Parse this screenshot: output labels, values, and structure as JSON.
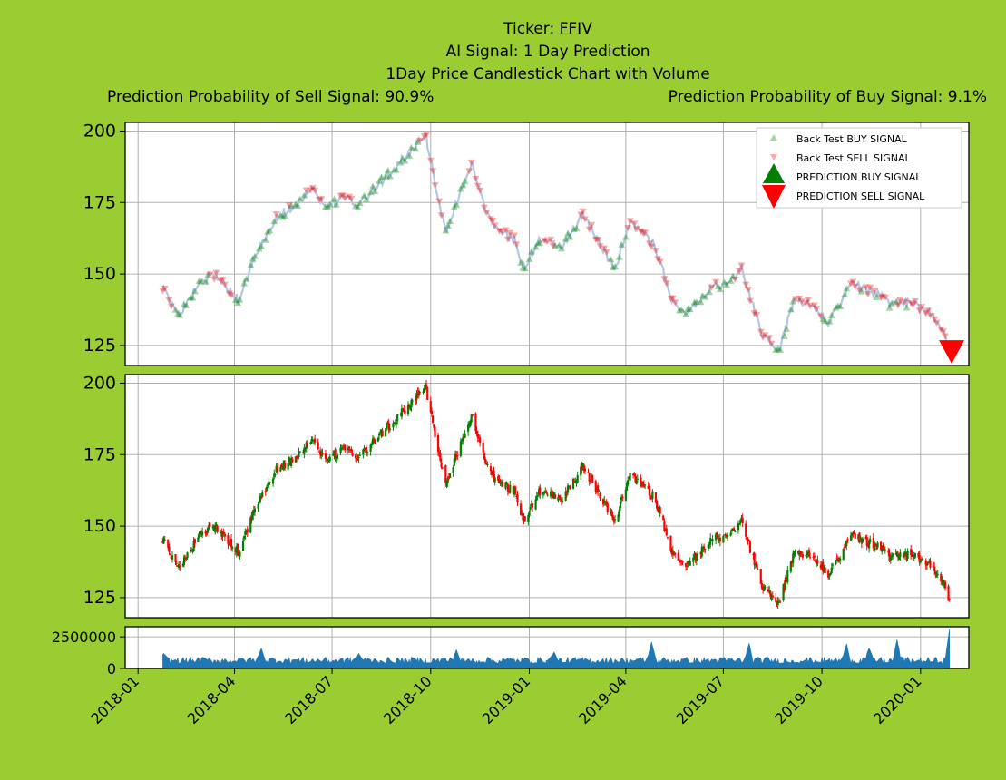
{
  "header": {
    "title_lines": [
      "Ticker: FFIV",
      "AI Signal: 1 Day Prediction",
      "1Day Price Candlestick Chart with Volume"
    ],
    "sell_probability": "Prediction Probability of Sell Signal: 90.9%",
    "buy_probability": "Prediction Probability of Buy Signal: 9.1%"
  },
  "colors": {
    "background": "#9acd32",
    "buy": "#008000",
    "sell": "#ff0000",
    "close_line": "#b0c8e4",
    "volume": "#1f77b4"
  },
  "chart_data": [
    {
      "type": "scatter",
      "panel": "signals",
      "x_range": [
        "2017-12-20",
        "2020-02-15"
      ],
      "ylim": [
        118,
        203
      ],
      "yticks": [
        "125",
        "150",
        "175",
        "200"
      ],
      "grid": true,
      "legend": {
        "placement": "top-right",
        "entries": [
          "Back Test BUY SIGNAL",
          "Back Test SELL SIGNAL",
          "PREDICTION BUY SIGNAL",
          "PREDICTION SELL SIGNAL"
        ]
      },
      "close_anchors": [
        [
          "2018-01-24",
          145
        ],
        [
          "2018-02-08",
          136
        ],
        [
          "2018-02-26",
          146
        ],
        [
          "2018-03-12",
          150
        ],
        [
          "2018-03-26",
          145
        ],
        [
          "2018-04-05",
          141
        ],
        [
          "2018-04-20",
          156
        ],
        [
          "2018-05-10",
          170
        ],
        [
          "2018-05-28",
          174
        ],
        [
          "2018-06-13",
          181
        ],
        [
          "2018-06-25",
          172
        ],
        [
          "2018-07-10",
          177
        ],
        [
          "2018-07-25",
          174
        ],
        [
          "2018-08-15",
          182
        ],
        [
          "2018-09-05",
          190
        ],
        [
          "2018-09-26",
          199
        ],
        [
          "2018-10-06",
          180
        ],
        [
          "2018-10-15",
          165
        ],
        [
          "2018-11-08",
          189
        ],
        [
          "2018-11-25",
          168
        ],
        [
          "2018-12-18",
          162
        ],
        [
          "2018-12-27",
          152
        ],
        [
          "2019-01-10",
          162
        ],
        [
          "2019-02-01",
          160
        ],
        [
          "2019-02-20",
          171
        ],
        [
          "2019-03-12",
          158
        ],
        [
          "2019-03-22",
          152
        ],
        [
          "2019-04-05",
          168
        ],
        [
          "2019-04-28",
          160
        ],
        [
          "2019-05-15",
          140
        ],
        [
          "2019-05-28",
          136
        ],
        [
          "2019-06-18",
          145
        ],
        [
          "2019-07-05",
          147
        ],
        [
          "2019-07-18",
          152
        ],
        [
          "2019-08-05",
          130
        ],
        [
          "2019-08-22",
          123
        ],
        [
          "2019-09-05",
          141
        ],
        [
          "2019-09-22",
          139
        ],
        [
          "2019-10-08",
          133
        ],
        [
          "2019-10-28",
          147
        ],
        [
          "2019-11-22",
          143
        ],
        [
          "2019-12-05",
          139
        ],
        [
          "2019-12-25",
          140
        ],
        [
          "2020-01-10",
          137
        ],
        [
          "2020-01-20",
          132
        ],
        [
          "2020-01-28",
          123
        ]
      ],
      "prediction_signal": {
        "signal": "sell",
        "date": "2020-01-30",
        "price": 124
      }
    },
    {
      "type": "candlestick",
      "panel": "price",
      "ylim": [
        118,
        203
      ],
      "yticks": [
        "125",
        "150",
        "175",
        "200"
      ],
      "grid": true
    },
    {
      "type": "area",
      "panel": "volume",
      "ylim": [
        0,
        3300000
      ],
      "yticks": [
        "0",
        "2500000"
      ],
      "baseline_volume": 650000,
      "spikes": [
        [
          "2018-01-25",
          1200000
        ],
        [
          "2018-04-26",
          1600000
        ],
        [
          "2018-07-26",
          1200000
        ],
        [
          "2018-10-25",
          1500000
        ],
        [
          "2019-01-24",
          1300000
        ],
        [
          "2019-04-25",
          2100000
        ],
        [
          "2019-07-25",
          2000000
        ],
        [
          "2019-10-24",
          1950000
        ],
        [
          "2019-11-14",
          1600000
        ],
        [
          "2019-12-10",
          2300000
        ],
        [
          "2020-01-28",
          3100000
        ]
      ],
      "grid": true
    }
  ],
  "x_axis": {
    "ticks": [
      "2018-01",
      "2018-04",
      "2018-07",
      "2018-10",
      "2019-01",
      "2019-04",
      "2019-07",
      "2019-10",
      "2020-01"
    ]
  }
}
